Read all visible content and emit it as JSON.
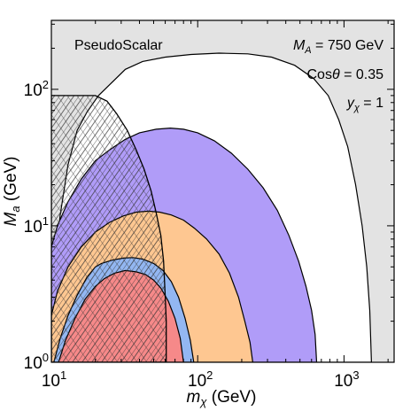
{
  "chart_data": {
    "type": "area",
    "xscale": "log",
    "yscale": "log",
    "xlim": [
      10,
      2200
    ],
    "ylim": [
      1,
      320
    ],
    "xlabel": {
      "sym": "m",
      "sub": "χ",
      "unit": " (GeV)"
    },
    "ylabel": {
      "sym": "M",
      "sub": "a",
      "unit": " (GeV)"
    },
    "x_ticks": [
      {
        "value": 10,
        "base": "10",
        "exp": "1"
      },
      {
        "value": 100,
        "base": "10",
        "exp": "2"
      },
      {
        "value": 1000,
        "base": "10",
        "exp": "3"
      }
    ],
    "y_ticks": [
      {
        "value": 1,
        "base": "10",
        "exp": "0"
      },
      {
        "value": 10,
        "base": "10",
        "exp": "1"
      },
      {
        "value": 100,
        "base": "10",
        "exp": "2"
      }
    ],
    "annotations": {
      "model": "PseudoScalar",
      "MA": {
        "sym": "M",
        "sub": "A",
        "rest": " = 750 GeV"
      },
      "cos": {
        "pre": "Cos",
        "sym": "θ",
        "rest": " = 0.35"
      },
      "yx": {
        "sym": "y",
        "sub": "χ",
        "rest": " = 1"
      }
    },
    "colors": {
      "excluded_gray": "#e3e3e3",
      "white_region": "#ffffff",
      "purple": "#b09cf8",
      "orange": "#fec791",
      "blue": "#93b7f2",
      "red": "#f68989",
      "hatch": "#333333"
    },
    "regions": [
      {
        "name": "white",
        "color": "#ffffff",
        "points": [
          [
            10,
            1
          ],
          [
            10,
            2
          ],
          [
            10.5,
            5
          ],
          [
            11.5,
            12
          ],
          [
            13,
            28
          ],
          [
            15,
            50
          ],
          [
            17.5,
            68
          ],
          [
            21,
            90
          ],
          [
            25,
            108
          ],
          [
            32,
            140
          ],
          [
            42,
            160
          ],
          [
            60,
            172
          ],
          [
            90,
            180
          ],
          [
            140,
            184
          ],
          [
            220,
            182
          ],
          [
            320,
            172
          ],
          [
            460,
            150
          ],
          [
            620,
            120
          ],
          [
            780,
            90
          ],
          [
            920,
            60
          ],
          [
            1060,
            38
          ],
          [
            1200,
            20
          ],
          [
            1330,
            10
          ],
          [
            1430,
            5
          ],
          [
            1500,
            2.4
          ],
          [
            1540,
            1
          ]
        ]
      },
      {
        "name": "purple",
        "color": "#b09cf8",
        "points": [
          [
            10,
            1
          ],
          [
            10,
            3
          ],
          [
            10,
            7
          ],
          [
            11,
            10
          ],
          [
            13,
            15
          ],
          [
            16,
            22
          ],
          [
            20,
            30
          ],
          [
            25,
            36
          ],
          [
            32,
            43
          ],
          [
            40,
            48
          ],
          [
            52,
            51
          ],
          [
            65,
            52
          ],
          [
            80,
            51
          ],
          [
            100,
            48
          ],
          [
            130,
            42
          ],
          [
            170,
            34
          ],
          [
            220,
            26
          ],
          [
            280,
            19
          ],
          [
            350,
            13
          ],
          [
            420,
            8.5
          ],
          [
            490,
            5.5
          ],
          [
            550,
            3.6
          ],
          [
            600,
            2.4
          ],
          [
            635,
            1.6
          ],
          [
            650,
            1
          ]
        ]
      },
      {
        "name": "orange",
        "color": "#fec791",
        "points": [
          [
            10,
            1
          ],
          [
            10,
            2.2
          ],
          [
            11,
            3.3
          ],
          [
            13,
            5
          ],
          [
            16,
            7
          ],
          [
            20,
            9
          ],
          [
            25,
            10.6
          ],
          [
            31,
            11.8
          ],
          [
            38,
            12.6
          ],
          [
            46,
            12.8
          ],
          [
            55,
            12.6
          ],
          [
            66,
            12
          ],
          [
            80,
            11
          ],
          [
            95,
            9.6
          ],
          [
            115,
            8
          ],
          [
            140,
            6.2
          ],
          [
            165,
            4.5
          ],
          [
            190,
            3
          ],
          [
            210,
            2
          ],
          [
            228,
            1.4
          ],
          [
            238,
            1
          ]
        ]
      },
      {
        "name": "blue",
        "color": "#93b7f2",
        "points": [
          [
            10.4,
            1
          ],
          [
            11.5,
            1.5
          ],
          [
            13,
            2.2
          ],
          [
            15,
            3.1
          ],
          [
            17.5,
            4.2
          ],
          [
            20,
            5
          ],
          [
            22,
            5.3
          ],
          [
            26,
            5.6
          ],
          [
            31,
            5.8
          ],
          [
            36,
            5.85
          ],
          [
            42,
            5.7
          ],
          [
            50,
            5.3
          ],
          [
            58,
            4.7
          ],
          [
            66,
            3.9
          ],
          [
            74,
            3
          ],
          [
            82,
            2.1
          ],
          [
            89,
            1.45
          ],
          [
            94,
            1
          ]
        ]
      },
      {
        "name": "red",
        "color": "#f68989",
        "points": [
          [
            11.2,
            1
          ],
          [
            12.5,
            1.45
          ],
          [
            14.5,
            2.1
          ],
          [
            17,
            2.9
          ],
          [
            20,
            3.6
          ],
          [
            23,
            4.1
          ],
          [
            27,
            4.5
          ],
          [
            32,
            4.7
          ],
          [
            38,
            4.6
          ],
          [
            44,
            4.4
          ],
          [
            50,
            4
          ],
          [
            56,
            3.5
          ],
          [
            63,
            2.8
          ],
          [
            70,
            2.1
          ],
          [
            76,
            1.5
          ],
          [
            80,
            1
          ]
        ]
      },
      {
        "name": "hatched",
        "hatch": true,
        "points": [
          [
            10,
            1
          ],
          [
            10,
            90
          ],
          [
            20,
            90
          ],
          [
            24,
            82
          ],
          [
            28,
            66
          ],
          [
            33,
            50
          ],
          [
            38,
            36
          ],
          [
            43,
            26
          ],
          [
            48,
            18
          ],
          [
            52,
            12.5
          ],
          [
            56,
            8.5
          ],
          [
            58.5,
            5.5
          ],
          [
            60,
            3
          ],
          [
            61,
            2
          ],
          [
            61,
            1
          ]
        ]
      }
    ]
  }
}
